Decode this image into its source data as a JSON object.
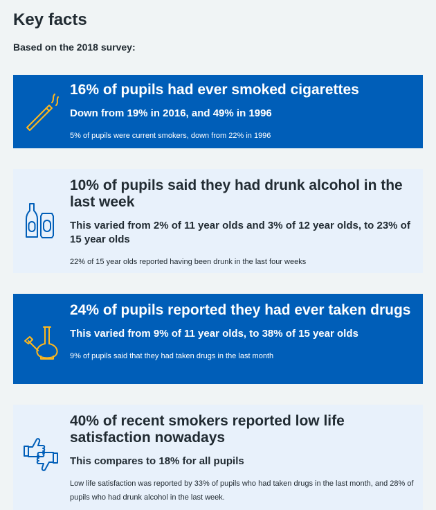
{
  "page": {
    "title": "Key facts",
    "lead": "Based on the 2018 survey:"
  },
  "colors": {
    "nhs_blue": "#005eb8",
    "pale_blue": "#e8f1fb",
    "background": "#f0f4f5",
    "text_dark": "#212b32",
    "icon_gold": "#ffb81c"
  },
  "cards": [
    {
      "icon": "cigarette-icon",
      "headline": "16% of pupils had ever smoked cigarettes",
      "subhead": "Down from 19% in 2016, and 49% in 1996",
      "detail": "5% of pupils were current smokers, down from 22% in 1996"
    },
    {
      "icon": "bottle-and-can-icon",
      "headline": "10% of pupils said they had drunk alcohol in the last week",
      "subhead": "This varied from 2% of 11 year olds and 3% of 12 year olds, to 23% of 15 year olds",
      "detail": "22% of 15 year olds reported having been drunk in the last four weeks"
    },
    {
      "icon": "bong-icon",
      "headline": "24% of pupils reported they had ever taken drugs",
      "subhead": "This varied from 9% of 11 year olds, to 38% of 15 year olds",
      "detail": "9% of pupils said that they had taken drugs in the last month"
    },
    {
      "icon": "thumbs-up-down-icon",
      "headline": "40% of recent smokers reported low life satisfaction nowadays",
      "subhead": "This compares to 18% for all pupils",
      "detail": "Low life satisfaction was reported by 33% of pupils who had taken drugs in the last month, and 28% of pupils who had drunk alcohol in the last week."
    }
  ]
}
